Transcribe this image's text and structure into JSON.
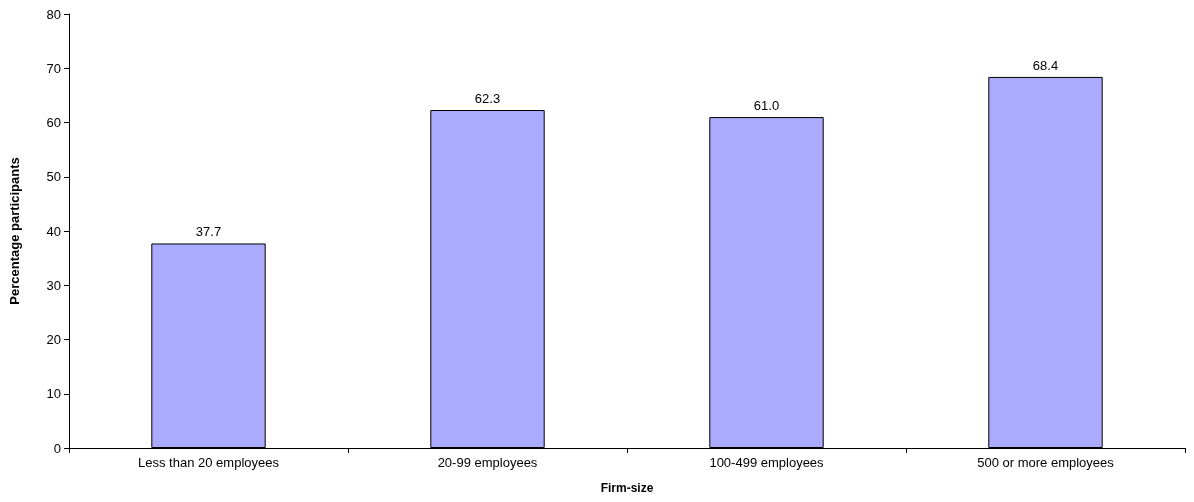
{
  "chart_data": {
    "type": "bar",
    "xlabel": "Firm-size",
    "ylabel": "Percentage participants",
    "categories": [
      "Less than 20 employees",
      "20-99 employees",
      "100-499 employees",
      "500 or more employees"
    ],
    "values": [
      37.7,
      62.3,
      61.0,
      68.4
    ],
    "value_labels": [
      "37.7",
      "62.3",
      "61.0",
      "68.4"
    ],
    "color": "#aaaaff",
    "ylim": [
      0,
      80
    ],
    "yticks": [
      0,
      10,
      20,
      30,
      40,
      50,
      60,
      70,
      80
    ],
    "grid": false
  }
}
